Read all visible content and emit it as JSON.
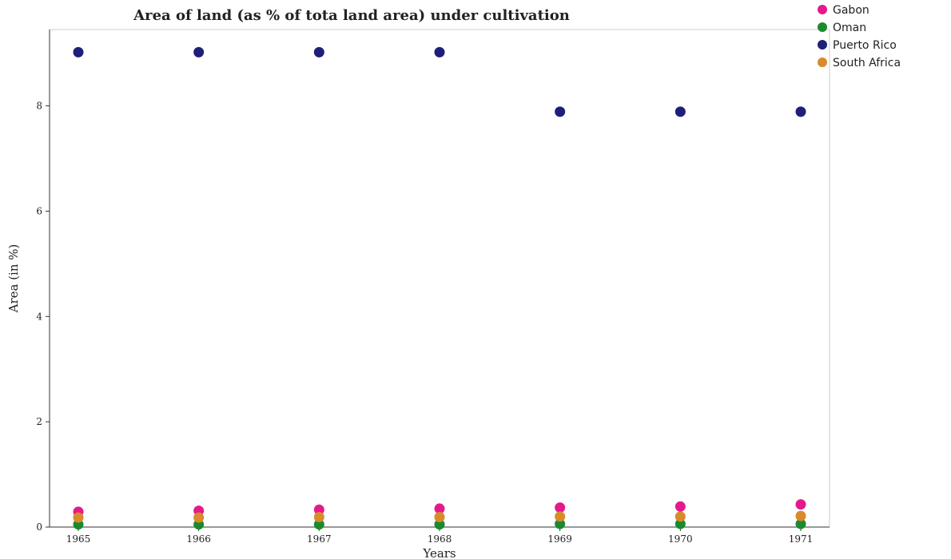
{
  "chart_data": {
    "type": "scatter",
    "title": "Area of land (as % of tota land area) under cultivation",
    "xlabel": "Years",
    "ylabel": "Area (in %)",
    "categories": [
      "1965",
      "1966",
      "1967",
      "1968",
      "1969",
      "1970",
      "1971"
    ],
    "ylim": [
      0,
      9.45
    ],
    "yticks": [
      "0",
      "2",
      "4",
      "6",
      "8"
    ],
    "ytick_values": [
      0,
      2,
      4,
      6,
      8
    ],
    "grid": false,
    "legend_position": "top-right",
    "series": [
      {
        "name": "Gabon",
        "color": "#e41a8c",
        "values": [
          0.29,
          0.31,
          0.33,
          0.35,
          0.37,
          0.39,
          0.43
        ]
      },
      {
        "name": "Oman",
        "color": "#1a8a2e",
        "values": [
          0.05,
          0.05,
          0.05,
          0.05,
          0.06,
          0.06,
          0.06
        ]
      },
      {
        "name": "Puerto Rico",
        "color": "#1f1f7a",
        "values": [
          9.02,
          9.02,
          9.02,
          9.02,
          7.89,
          7.89,
          7.89
        ]
      },
      {
        "name": "South Africa",
        "color": "#d98a2b",
        "values": [
          0.18,
          0.18,
          0.19,
          0.19,
          0.2,
          0.2,
          0.21
        ]
      }
    ]
  }
}
